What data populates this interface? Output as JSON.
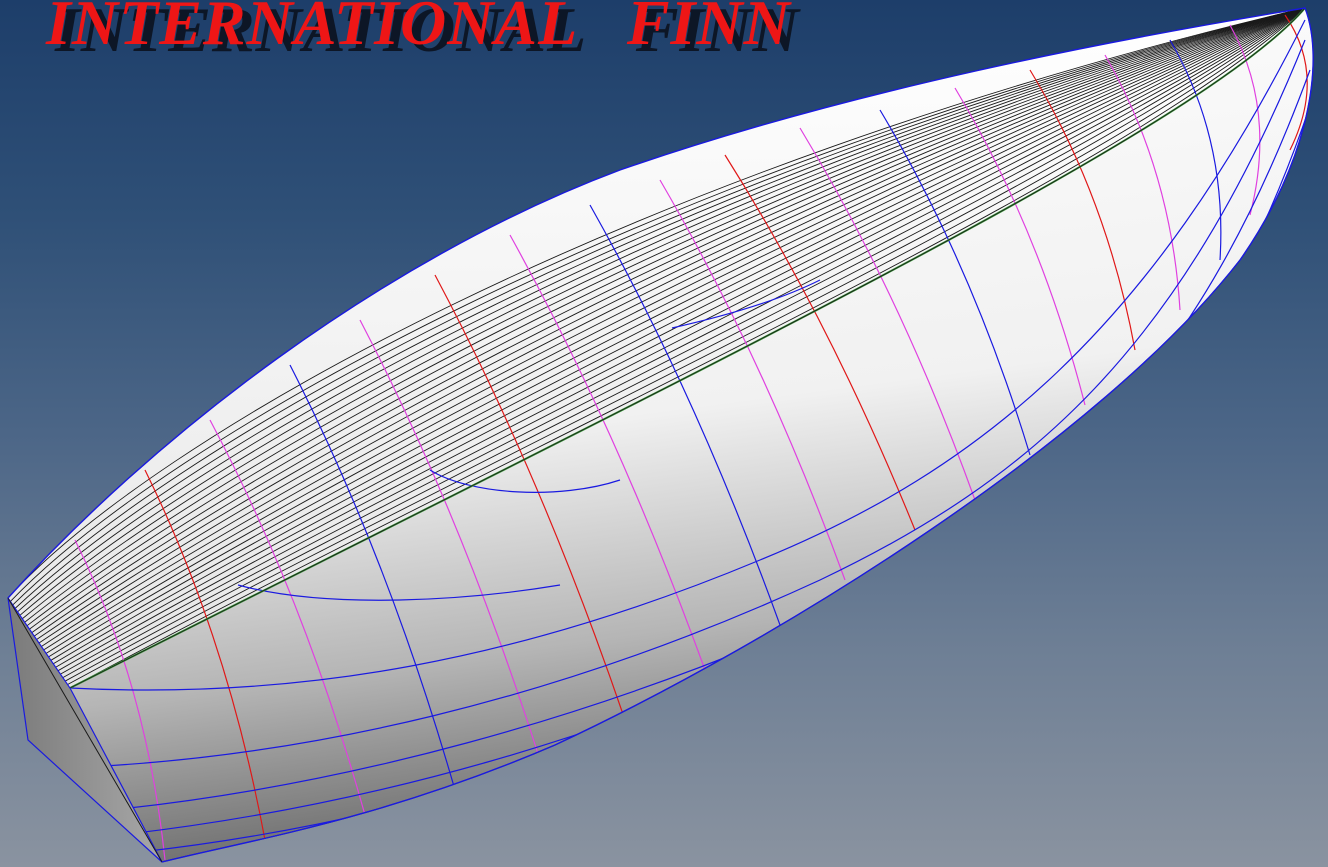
{
  "title": "INTERNATIONAL    FINN",
  "colors": {
    "title": "#ee1616",
    "background_top": "#1d3e6a",
    "background_bottom": "#8a93a0",
    "hull_surface": "#ffffff",
    "deck_lines": "#1a1a1a",
    "sheer_line": "#3a9a3a",
    "station_red": "#e01818",
    "station_magenta": "#e040e0",
    "station_blue": "#1a1ae0"
  }
}
